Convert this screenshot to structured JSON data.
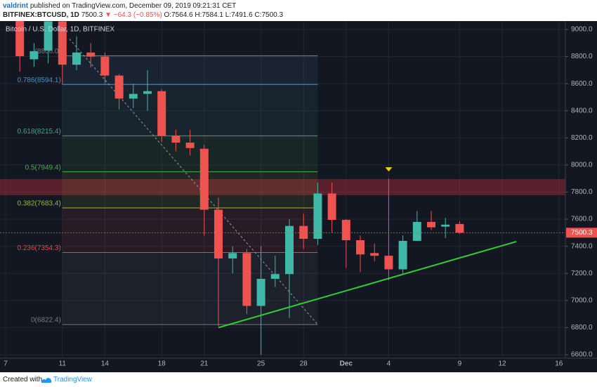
{
  "header": {
    "author": "valdrint",
    "published": "published on TradingView.com, December 09, 2019 09:21:31 CET",
    "symbol": "BITFINEX:BTCUSD, 1D",
    "price": "7500.3",
    "change": "▼ −64.3 (−0.85%)",
    "ohlc": "O:7564.6 H:7584.1 L:7491.6 C:7500.3"
  },
  "footer": {
    "text": "Created with",
    "brand": "TradingView"
  },
  "chart_data": {
    "type": "candlestick",
    "title": "Bitcoin / U.S. Dollar, 1D, BITFINEX",
    "categories": [
      "7",
      null,
      null,
      null,
      "11",
      null,
      null,
      "14",
      null,
      null,
      null,
      "18",
      null,
      null,
      "21",
      null,
      null,
      null,
      "25",
      null,
      null,
      "28",
      null,
      null,
      "Dec",
      null,
      null,
      "4",
      null,
      null,
      null,
      null,
      "9",
      null,
      null,
      "12",
      null,
      null,
      null,
      "16"
    ],
    "open": [
      null,
      9200,
      8780,
      8845,
      9060,
      8740,
      8830,
      8800,
      8660,
      8490,
      8525,
      8545,
      8215,
      8165,
      8120,
      7670,
      7310,
      7350,
      6960,
      7160,
      7195,
      7550,
      7455,
      7790,
      7595,
      7445,
      7350,
      7330,
      7230,
      7440,
      7580,
      7545,
      7564.6,
      null,
      null,
      null,
      null,
      null,
      null,
      null
    ],
    "high": [
      null,
      9250,
      8900,
      9100,
      9150,
      8950,
      8900,
      8830,
      8670,
      8600,
      8700,
      8560,
      8260,
      8260,
      8150,
      7760,
      7400,
      7380,
      7400,
      7330,
      7600,
      7640,
      7870,
      7870,
      7600,
      7480,
      7420,
      7900,
      7480,
      7660,
      7660,
      7610,
      7584.1,
      null,
      null,
      null,
      null,
      null,
      null,
      null
    ],
    "low": [
      null,
      8689,
      8725,
      8750,
      8595,
      8700,
      8720,
      8600,
      8410,
      8420,
      8400,
      8170,
      8100,
      8070,
      7480,
      6810,
      7200,
      6900,
      6600,
      7100,
      6870,
      7380,
      7410,
      7500,
      7240,
      7210,
      7290,
      7150,
      7200,
      7440,
      7520,
      7460,
      7491.6,
      null,
      null,
      null,
      null,
      null,
      null,
      null
    ],
    "close": [
      null,
      8803,
      8840,
      9060,
      8740,
      8830,
      8800,
      8660,
      8490,
      8525,
      8545,
      8215,
      8165,
      8125,
      7670,
      7310,
      7350,
      6960,
      7160,
      7195,
      7550,
      7455,
      7790,
      7595,
      7445,
      7340,
      7330,
      7230,
      7440,
      7580,
      7540,
      7560,
      7500.3,
      null,
      null,
      null,
      null,
      null,
      null,
      null
    ],
    "up_color": "#3fb8a8",
    "down_color": "#ef5350",
    "ylim": [
      6600,
      9000
    ],
    "yticks": [
      {
        "value": 6600,
        "label": "6600.0"
      },
      {
        "value": 6800,
        "label": "6800.0"
      },
      {
        "value": 7000,
        "label": "7000.0"
      },
      {
        "value": 7200,
        "label": "7200.0"
      },
      {
        "value": 7400,
        "label": "7400.0"
      },
      {
        "value": 7600,
        "label": "7600.0"
      },
      {
        "value": 7800,
        "label": "7800.0"
      },
      {
        "value": 8000,
        "label": "8000.0"
      },
      {
        "value": 8200,
        "label": "8200.0"
      },
      {
        "value": 8400,
        "label": "8400.0"
      },
      {
        "value": 8600,
        "label": "8600.0"
      },
      {
        "value": 8800,
        "label": "8800.0"
      },
      {
        "value": 9000,
        "label": "9000.0"
      }
    ],
    "grid": true,
    "fib": {
      "x": [
        4,
        22
      ],
      "levels": [
        {
          "value": 8806.0,
          "label": "(8806.0)",
          "color": "#787b86"
        },
        {
          "value": 8594.1,
          "label": "0.786(8594.1)",
          "color": "#4a90c8"
        },
        {
          "value": 8215.4,
          "label": "0.618(8215.4)",
          "color": "#40a090"
        },
        {
          "value": 7949.4,
          "label": "0.5(7949.4)",
          "color": "#4caf50"
        },
        {
          "value": 7683.4,
          "label": "0.382(7683.4)",
          "color": "#9ab83a"
        },
        {
          "value": 7354.3,
          "label": "0.236(7354.3)",
          "color": "#d84a4a"
        },
        {
          "value": 6822.4,
          "label": "0(6822.4)",
          "color": "#787b86"
        }
      ]
    },
    "resistance": {
      "ylim": [
        7777,
        7896
      ],
      "color": "#b02a3a"
    },
    "trend_line": {
      "x": [
        15,
        36
      ],
      "y": [
        6800,
        7435
      ],
      "color": "#33cc33"
    },
    "diagonal": {
      "x": [
        4.5,
        22
      ],
      "y": [
        8930,
        6822.4
      ],
      "color": "#9598a1"
    },
    "marker": {
      "x": 27,
      "y": 7968,
      "color": "#f5d000"
    }
  }
}
